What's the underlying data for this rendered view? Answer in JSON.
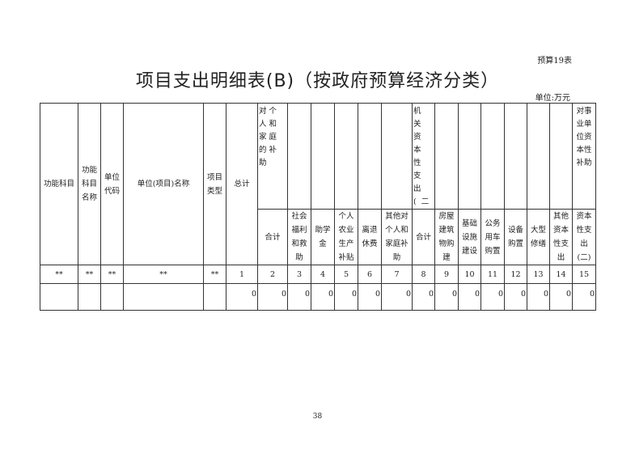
{
  "form_no": "预算19表",
  "title": "项目支出明细表(B)（按政府预算经济分类）",
  "unit": "单位:万元",
  "headers": {
    "c0": "功能科目",
    "c1": "功能科目名称",
    "c2": "单位代码",
    "c3": "单位(项目)名称",
    "c4": "项目类型",
    "c5": "总计",
    "g1": "对个人和家庭的补助",
    "g2": "机关资本性支出(二)",
    "g3": "对事业单位资本性补助",
    "s": [
      "合计",
      "社会福利和救助",
      "助学金",
      "个人农业生产补贴",
      "离退休费",
      "其他对个人和家庭补助",
      "合计",
      "房屋建筑物购建",
      "基础设施建设",
      "公务用车购置",
      "设备购置",
      "大型修缮",
      "其他资本性支出",
      "资本性支出(二)"
    ]
  },
  "index_row": [
    "**",
    "**",
    "**",
    "**",
    "**",
    "1",
    "2",
    "3",
    "4",
    "5",
    "6",
    "7",
    "8",
    "9",
    "10",
    "11",
    "12",
    "13",
    "14",
    "15"
  ],
  "data_row": [
    "",
    "",
    "",
    "",
    "",
    "0",
    "0",
    "0",
    "0",
    "0",
    "0",
    "0",
    "0",
    "0",
    "0",
    "0",
    "0",
    "0",
    "0",
    "0"
  ],
  "page_number": "38"
}
